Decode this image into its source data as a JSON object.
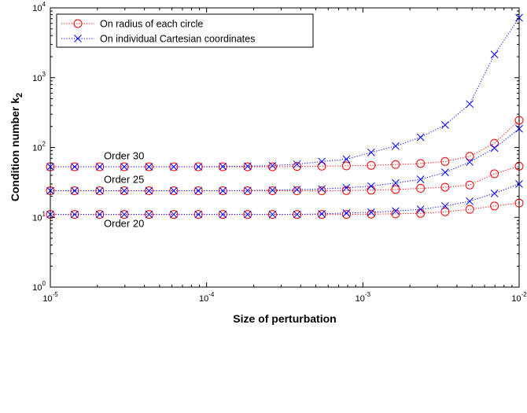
{
  "chart_data": {
    "type": "line",
    "xlabel": "Size of perturbation",
    "ylabel_main": "Condition number k",
    "ylabel_sub": "2",
    "xscale": "log",
    "yscale": "log",
    "xlim": [
      1e-05,
      0.01
    ],
    "ylim": [
      1,
      10000
    ],
    "xticks": [
      {
        "base": "10",
        "exp": "-5",
        "value": 1e-05
      },
      {
        "base": "10",
        "exp": "-4",
        "value": 0.0001
      },
      {
        "base": "10",
        "exp": "-3",
        "value": 0.001
      },
      {
        "base": "10",
        "exp": "-2",
        "value": 0.01
      }
    ],
    "yticks": [
      {
        "base": "10",
        "exp": "0",
        "value": 1
      },
      {
        "base": "10",
        "exp": "1",
        "value": 10
      },
      {
        "base": "10",
        "exp": "2",
        "value": 100
      },
      {
        "base": "10",
        "exp": "3",
        "value": 1000
      },
      {
        "base": "10",
        "exp": "4",
        "value": 10000
      }
    ],
    "grid": false,
    "legend_position": "top-left",
    "x": [
      1e-05,
      1.43e-05,
      2.07e-05,
      2.97e-05,
      4.28e-05,
      6.16e-05,
      8.86e-05,
      0.000127,
      0.000183,
      0.000264,
      0.000379,
      0.000546,
      0.000785,
      0.00113,
      0.00162,
      0.00234,
      0.00336,
      0.00483,
      0.00695,
      0.01
    ],
    "series": [
      {
        "name": "On radius of each circle",
        "group": "Order 30",
        "marker": "circle",
        "color": "#ff0000",
        "values": [
          53,
          53,
          53,
          53,
          53,
          53,
          53,
          53,
          53,
          53,
          53.5,
          54,
          54.5,
          55.5,
          57,
          59,
          63,
          75,
          115,
          245
        ]
      },
      {
        "name": "On individual Cartesian coordinates",
        "group": "Order 30",
        "marker": "x",
        "color": "#0000ff",
        "values": [
          53,
          53,
          53,
          53,
          53,
          53,
          53,
          53.5,
          54,
          55,
          57.5,
          63,
          68,
          85,
          105,
          140,
          210,
          420,
          2150,
          7200
        ]
      },
      {
        "name": "On radius of each circle",
        "group": "Order 25",
        "marker": "circle",
        "color": "#ff0000",
        "values": [
          24,
          24,
          24,
          24,
          24,
          24,
          24,
          24,
          24,
          24,
          24,
          24,
          24.2,
          24.5,
          25,
          26,
          27,
          29,
          42,
          54
        ]
      },
      {
        "name": "On individual Cartesian coordinates",
        "group": "Order 25",
        "marker": "x",
        "color": "#0000ff",
        "values": [
          24,
          24,
          24,
          24,
          24,
          24,
          24,
          24,
          24.2,
          24.5,
          25,
          25.5,
          26.5,
          28,
          31,
          35,
          44,
          62,
          98,
          185
        ]
      },
      {
        "name": "On radius of each circle",
        "group": "Order 20",
        "marker": "circle",
        "color": "#ff0000",
        "values": [
          11,
          11,
          11,
          11,
          11,
          11,
          11,
          11,
          11,
          11,
          11,
          11,
          11,
          11.1,
          11.2,
          11.4,
          12,
          13,
          14.5,
          16
        ]
      },
      {
        "name": "On individual Cartesian coordinates",
        "group": "Order 20",
        "marker": "x",
        "color": "#0000ff",
        "values": [
          11,
          11,
          11,
          11,
          11,
          11,
          11,
          11,
          11,
          11,
          11,
          11.2,
          11.5,
          11.8,
          12.3,
          13,
          14.5,
          17,
          22,
          30
        ]
      }
    ],
    "annotations": [
      {
        "text": "Order 30",
        "x": 2.2e-05,
        "y": 68
      },
      {
        "text": "Order 25",
        "x": 2.2e-05,
        "y": 31
      },
      {
        "text": "Order 20",
        "x": 2.2e-05,
        "y": 7.3
      }
    ],
    "legend": [
      {
        "label": "On radius of each circle",
        "marker": "circle",
        "color": "#ff0000"
      },
      {
        "label": "On individual Cartesian coordinates",
        "marker": "x",
        "color": "#0000ff"
      }
    ]
  }
}
